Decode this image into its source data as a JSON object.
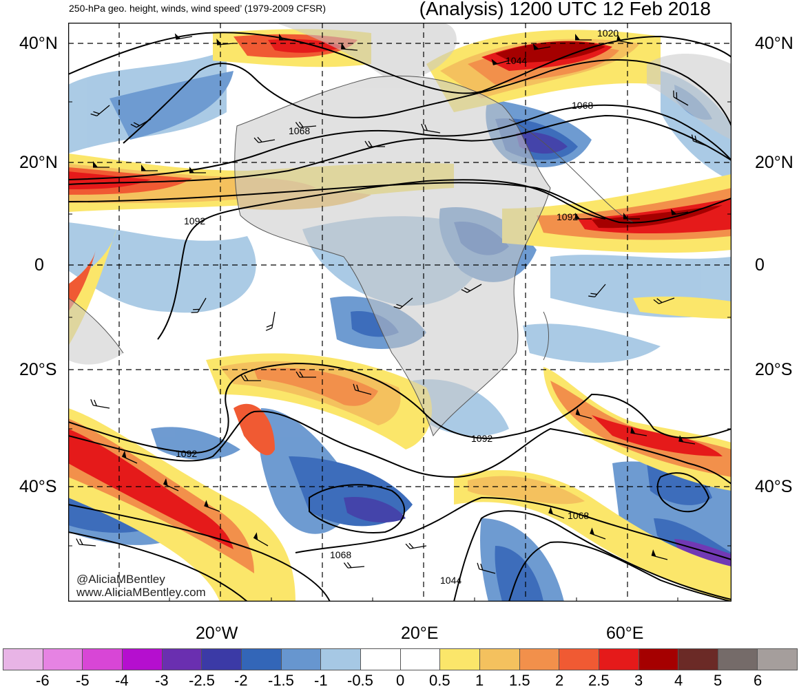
{
  "header": {
    "left_title": "250-hPa geo. height, winds, wind speed’ (1979-2009 CFSR)",
    "right_title": "(Analysis) 1200 UTC 12 Feb 2018"
  },
  "map": {
    "latitudes": [
      "40°N",
      "20°N",
      "0",
      "20°S",
      "40°S"
    ],
    "longitudes": [
      "20°W",
      "20°E",
      "60°E"
    ],
    "contour_labels": [
      "1020",
      "1044",
      "1068",
      "1068",
      "1092",
      "1092",
      "1092",
      "1092",
      "1068",
      "1068",
      "1044"
    ],
    "credit": {
      "handle": "@AliciaMBentley",
      "website": "www.AliciaMBentley.com"
    },
    "colors": {
      "land": "#c8c8c8",
      "ocean": "#ffffff",
      "contour": "#000000",
      "grid": "#000000"
    }
  },
  "colorbar": {
    "colors": [
      "#e8b4e6",
      "#e683e3",
      "#d846d6",
      "#b50fcf",
      "#6a2fb0",
      "#3b3aa6",
      "#3366b8",
      "#6796cf",
      "#a6c8e4",
      "#ffffff",
      "#ffffff",
      "#fbe66a",
      "#f4c15e",
      "#f2904b",
      "#f05a33",
      "#e51a1a",
      "#a50000",
      "#6b2a26",
      "#756b69",
      "#a59e9c"
    ],
    "tick_labels": [
      "-6",
      "-5",
      "-4",
      "-3",
      "-2.5",
      "-2",
      "-1.5",
      "-1",
      "-0.5",
      "0",
      "0.5",
      "1",
      "1.5",
      "2",
      "2.5",
      "3",
      "4",
      "5",
      "6"
    ]
  }
}
